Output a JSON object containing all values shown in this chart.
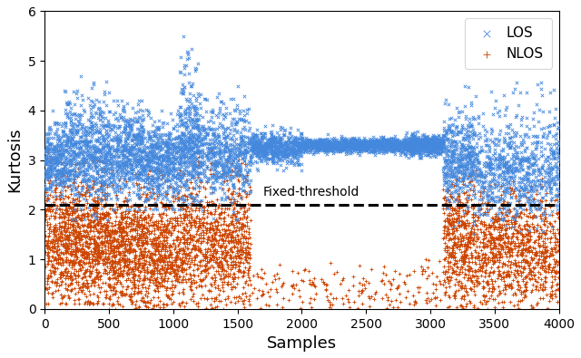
{
  "title": "",
  "xlabel": "Samples",
  "ylabel": "Kurtosis",
  "xlim": [
    0,
    4000
  ],
  "ylim": [
    0,
    6
  ],
  "threshold": 2.1,
  "threshold_label": "Fixed-threshold",
  "los_color": "#4488dd",
  "nlos_color": "#cc4400",
  "legend_los": "LOS",
  "legend_nlos": "NLOS",
  "seed": 42,
  "marker_size": 6,
  "marker_lw": 0.6
}
